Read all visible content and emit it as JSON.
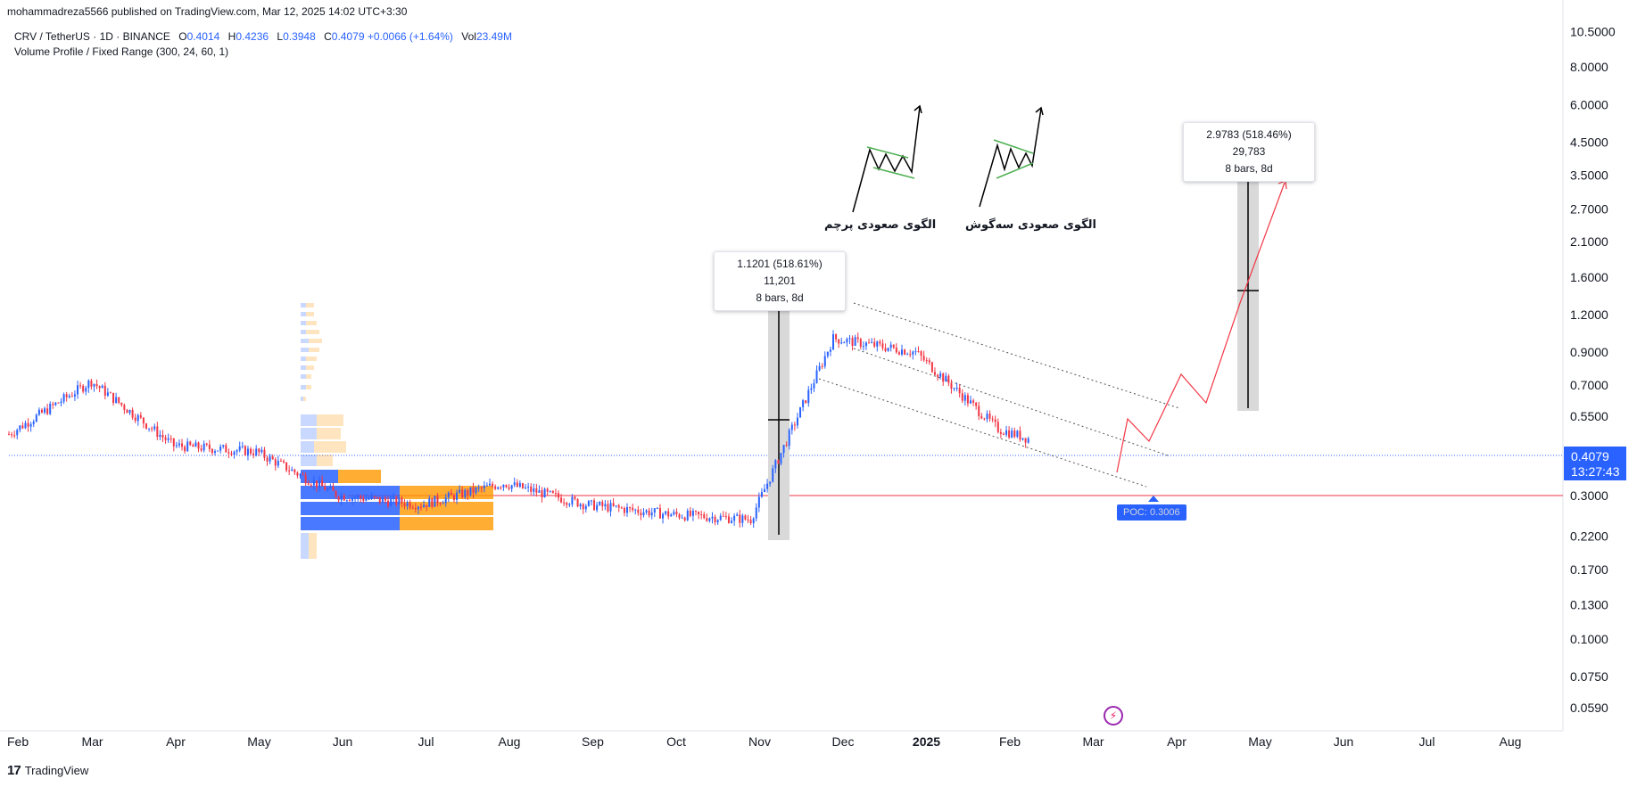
{
  "publisher": "mohammadreza5566 published on TradingView.com, Mar 12, 2025 14:02 UTC+3:30",
  "legend": {
    "symbol": "CRV / TetherUS · 1D · BINANCE",
    "open_label": "O",
    "open": "0.4014",
    "high_label": "H",
    "high": "0.4236",
    "low_label": "L",
    "low": "0.3948",
    "close_label": "C",
    "close": "0.4079",
    "change": "+0.0066 (+1.64%)",
    "vol_label": "Vol",
    "vol": "23.49M",
    "indicator": "Volume Profile / Fixed Range (300, 24, 60, 1)"
  },
  "price_tag": {
    "price": "0.4079",
    "countdown": "13:27:43"
  },
  "measure_1": {
    "line1": "1.1201 (518.61%) 11,201",
    "line2": "8 bars, 8d"
  },
  "measure_2": {
    "line1": "2.9783 (518.46%) 29,783",
    "line2": "8 bars, 8d"
  },
  "poc_label": "POC: 0.3006",
  "pattern_labels": {
    "flag": "الگوی صعودی پرچم",
    "triangle": "الگوی صعودی سه‌گوش"
  },
  "footer": {
    "brand": "TradingView"
  },
  "colors": {
    "up": "#2962ff",
    "down": "#f23645",
    "accent": "#2962ff",
    "poc_line": "#f23645",
    "vp_up": "#2962ff",
    "vp_down": "#ff9800"
  },
  "chart_data": {
    "type": "candlestick",
    "symbol": "CRV / TetherUS",
    "interval": "1D",
    "y_scale": "log",
    "price_axis": [
      "10.5000",
      "8.0000",
      "6.0000",
      "4.5000",
      "3.5000",
      "2.7000",
      "2.1000",
      "1.6000",
      "1.2000",
      "0.9000",
      "0.7000",
      "0.5500",
      "0.3000",
      "0.2200",
      "0.1700",
      "0.1300",
      "0.1000",
      "0.0750",
      "0.0590"
    ],
    "time_axis": [
      "Feb",
      "Mar",
      "Apr",
      "May",
      "Jun",
      "Jul",
      "Aug",
      "Sep",
      "Oct",
      "Nov",
      "Dec",
      "2025",
      "Feb",
      "Mar",
      "Apr",
      "May",
      "Jun",
      "Jul",
      "Aug"
    ],
    "approx_closes_monthly": [
      {
        "date": "2024-02",
        "close": 0.48
      },
      {
        "date": "2024-03",
        "close": 0.72
      },
      {
        "date": "2024-04",
        "close": 0.44
      },
      {
        "date": "2024-05",
        "close": 0.42
      },
      {
        "date": "2024-06",
        "close": 0.3
      },
      {
        "date": "2024-07",
        "close": 0.28
      },
      {
        "date": "2024-08",
        "close": 0.33
      },
      {
        "date": "2024-09",
        "close": 0.28
      },
      {
        "date": "2024-10",
        "close": 0.26
      },
      {
        "date": "2024-11",
        "close": 0.25
      },
      {
        "date": "2024-12",
        "close": 1.0
      },
      {
        "date": "2025-01",
        "close": 0.9
      },
      {
        "date": "2025-02",
        "close": 0.5
      },
      {
        "date": "2025-03",
        "close": 0.4079
      }
    ],
    "last_price": 0.4079,
    "poc": 0.3006
  }
}
